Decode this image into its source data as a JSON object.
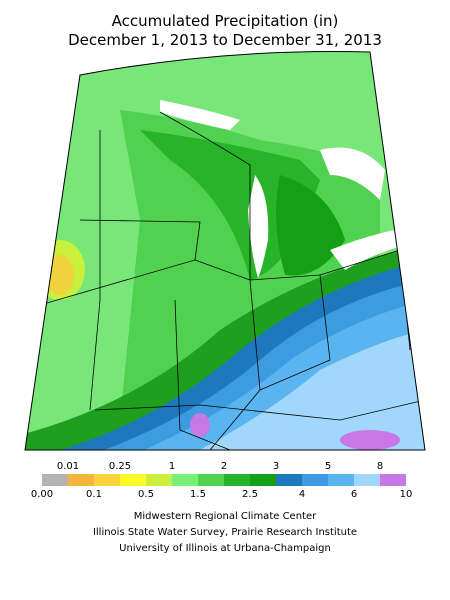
{
  "title": [
    "Accumulated Precipitation (in)",
    "December 1, 2013 to December 31, 2013"
  ],
  "legend": {
    "upper_labels": [
      "0.01",
      "0.25",
      "1",
      "2",
      "3",
      "5",
      "8"
    ],
    "lower_labels": [
      "0.00",
      "0.1",
      "0.5",
      "1.5",
      "2.5",
      "4",
      "6",
      "10"
    ]
  },
  "credits": [
    "Midwestern Regional Climate Center",
    "Illinois State Water Survey, Prairie Research Institute",
    "University of Illinois at Urbana-Champaign"
  ]
}
